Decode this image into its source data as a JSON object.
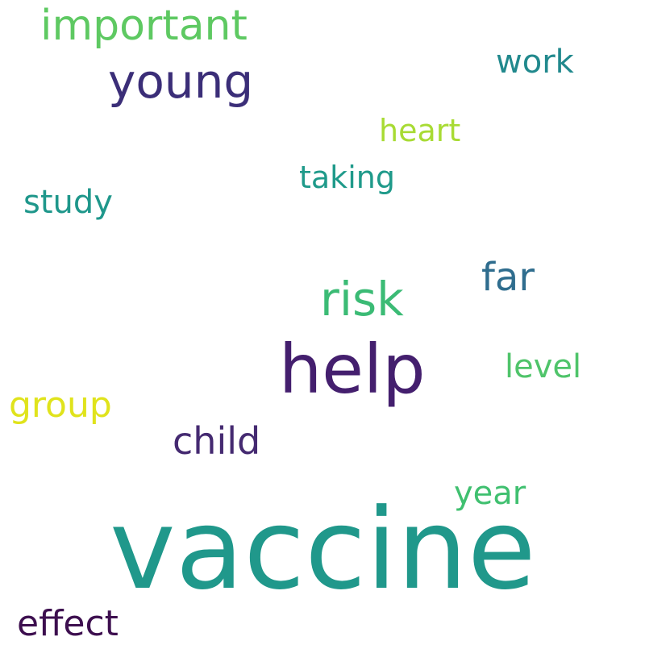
{
  "word_cloud": {
    "words": [
      {
        "id": "important",
        "text": "important",
        "color": "#5ec962"
      },
      {
        "id": "young",
        "text": "young",
        "color": "#3b2e78"
      },
      {
        "id": "work",
        "text": "work",
        "color": "#21898d"
      },
      {
        "id": "heart",
        "text": "heart",
        "color": "#a8db34"
      },
      {
        "id": "taking",
        "text": "taking",
        "color": "#1f9a8a"
      },
      {
        "id": "study",
        "text": "study",
        "color": "#1f978b"
      },
      {
        "id": "far",
        "text": "far",
        "color": "#2f6d8e"
      },
      {
        "id": "risk",
        "text": "risk",
        "color": "#3bbb75"
      },
      {
        "id": "help",
        "text": "help",
        "color": "#441f6e"
      },
      {
        "id": "level",
        "text": "level",
        "color": "#4fc46a"
      },
      {
        "id": "group",
        "text": "group",
        "color": "#e0e31c"
      },
      {
        "id": "child",
        "text": "child",
        "color": "#452a71"
      },
      {
        "id": "year",
        "text": "year",
        "color": "#40c070"
      },
      {
        "id": "vaccine",
        "text": "vaccine",
        "color": "#20988b"
      },
      {
        "id": "effect",
        "text": "effect",
        "color": "#3d0f4f"
      }
    ]
  }
}
